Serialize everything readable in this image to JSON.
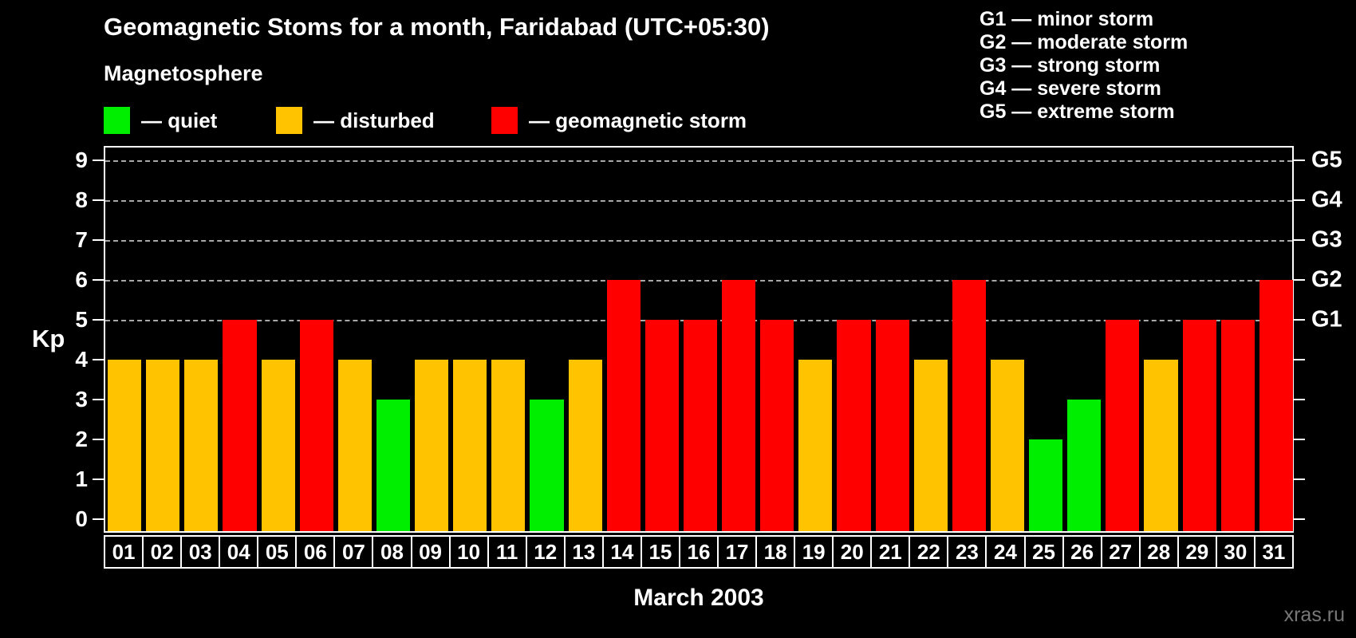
{
  "header": {
    "title": "Geomagnetic Stoms for a month, Faridabad (UTC+05:30)",
    "subtitle": "Magnetosphere"
  },
  "legend": {
    "items": [
      {
        "label": "— quiet",
        "status": "quiet"
      },
      {
        "label": "— disturbed",
        "status": "disturbed"
      },
      {
        "label": "— geomagnetic storm",
        "status": "storm"
      }
    ]
  },
  "storm_scale": {
    "lines": [
      "G1 — minor storm",
      "G2 — moderate storm",
      "G3 — strong storm",
      "G4 — severe storm",
      "G5 — extreme storm"
    ]
  },
  "footer": {
    "xlabel": "March 2003",
    "watermark": "xras.ru"
  },
  "chart_data": {
    "type": "bar",
    "title": "Geomagnetic Stoms for a month, Faridabad (UTC+05:30)",
    "xlabel": "March 2003",
    "ylabel": "Kp",
    "ylim": [
      0,
      9
    ],
    "grid": "dashed horizontal at Kp 5-9",
    "grid_kp": [
      5,
      6,
      7,
      8,
      9
    ],
    "left_ticks": [
      0,
      1,
      2,
      3,
      4,
      5,
      6,
      7,
      8,
      9
    ],
    "right_axis_labels": [
      {
        "label": "G1",
        "kp": 5
      },
      {
        "label": "G2",
        "kp": 6
      },
      {
        "label": "G3",
        "kp": 7
      },
      {
        "label": "G4",
        "kp": 8
      },
      {
        "label": "G5",
        "kp": 9
      }
    ],
    "colors": {
      "quiet": "#00ee00",
      "disturbed": "#ffc300",
      "storm": "#ff0000",
      "axis": "#ffffff",
      "grid": "#a8a8a8",
      "background": "#000000"
    },
    "categories": [
      "01",
      "02",
      "03",
      "04",
      "05",
      "06",
      "07",
      "08",
      "09",
      "10",
      "11",
      "12",
      "13",
      "14",
      "15",
      "16",
      "17",
      "18",
      "19",
      "20",
      "21",
      "22",
      "23",
      "24",
      "25",
      "26",
      "27",
      "28",
      "29",
      "30",
      "31"
    ],
    "values": [
      4,
      4,
      4,
      5,
      4,
      5,
      4,
      3,
      4,
      4,
      4,
      3,
      4,
      6,
      5,
      5,
      6,
      5,
      4,
      5,
      5,
      4,
      6,
      4,
      2,
      3,
      5,
      4,
      5,
      5,
      6
    ],
    "points": [
      {
        "day": "01",
        "kp": 4,
        "status": "disturbed"
      },
      {
        "day": "02",
        "kp": 4,
        "status": "disturbed"
      },
      {
        "day": "03",
        "kp": 4,
        "status": "disturbed"
      },
      {
        "day": "04",
        "kp": 5,
        "status": "storm"
      },
      {
        "day": "05",
        "kp": 4,
        "status": "disturbed"
      },
      {
        "day": "06",
        "kp": 5,
        "status": "storm"
      },
      {
        "day": "07",
        "kp": 4,
        "status": "disturbed"
      },
      {
        "day": "08",
        "kp": 3,
        "status": "quiet"
      },
      {
        "day": "09",
        "kp": 4,
        "status": "disturbed"
      },
      {
        "day": "10",
        "kp": 4,
        "status": "disturbed"
      },
      {
        "day": "11",
        "kp": 4,
        "status": "disturbed"
      },
      {
        "day": "12",
        "kp": 3,
        "status": "quiet"
      },
      {
        "day": "13",
        "kp": 4,
        "status": "disturbed"
      },
      {
        "day": "14",
        "kp": 6,
        "status": "storm"
      },
      {
        "day": "15",
        "kp": 5,
        "status": "storm"
      },
      {
        "day": "16",
        "kp": 5,
        "status": "storm"
      },
      {
        "day": "17",
        "kp": 6,
        "status": "storm"
      },
      {
        "day": "18",
        "kp": 5,
        "status": "storm"
      },
      {
        "day": "19",
        "kp": 4,
        "status": "disturbed"
      },
      {
        "day": "20",
        "kp": 5,
        "status": "storm"
      },
      {
        "day": "21",
        "kp": 5,
        "status": "storm"
      },
      {
        "day": "22",
        "kp": 4,
        "status": "disturbed"
      },
      {
        "day": "23",
        "kp": 6,
        "status": "storm"
      },
      {
        "day": "24",
        "kp": 4,
        "status": "disturbed"
      },
      {
        "day": "25",
        "kp": 2,
        "status": "quiet"
      },
      {
        "day": "26",
        "kp": 3,
        "status": "quiet"
      },
      {
        "day": "27",
        "kp": 5,
        "status": "storm"
      },
      {
        "day": "28",
        "kp": 4,
        "status": "disturbed"
      },
      {
        "day": "29",
        "kp": 5,
        "status": "storm"
      },
      {
        "day": "30",
        "kp": 5,
        "status": "storm"
      },
      {
        "day": "31",
        "kp": 6,
        "status": "storm"
      }
    ]
  }
}
